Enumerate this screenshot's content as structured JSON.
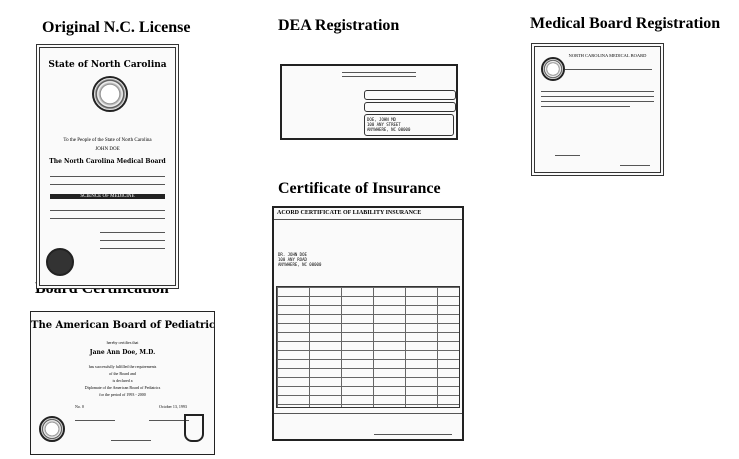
{
  "headings": {
    "license": "Original N.C. License",
    "dea": "DEA Registration",
    "medical_board": "Medical Board Registration",
    "insurance": "Certificate of Insurance",
    "board_cert": "Board Certification"
  },
  "license_doc": {
    "state_title": "State of North Carolina",
    "to_people": "To the People of the State of North Carolina",
    "name": "JOHN DOE",
    "board": "The North Carolina Medical Board",
    "science": "SCIENCE OF MEDICINE"
  },
  "dea_doc": {
    "address": [
      "DOE, JOHN MD",
      "100 ANY STREET",
      "ANYWHERE, NC 00000"
    ]
  },
  "medical_board_doc": {
    "title": "NORTH CAROLINA MEDICAL BOARD"
  },
  "insurance_doc": {
    "title": "ACORD   CERTIFICATE OF LIABILITY INSURANCE",
    "insured": [
      "DR. JOHN DOE",
      "100 ANY ROAD",
      "ANYWHERE, NC 00000"
    ]
  },
  "board_cert_doc": {
    "title": "The American Board of Pediatrics",
    "certifies": "hereby certifies that",
    "name": "Jane Ann Doe, M.D.",
    "body": [
      "has successfully fulfilled the requirements",
      "of the Board and",
      "is declared a",
      "Diplomate of the American Board of Pediatrics",
      "for the period of 1993 - 2000"
    ],
    "number": "No. 0",
    "date": "October 13, 1993"
  }
}
